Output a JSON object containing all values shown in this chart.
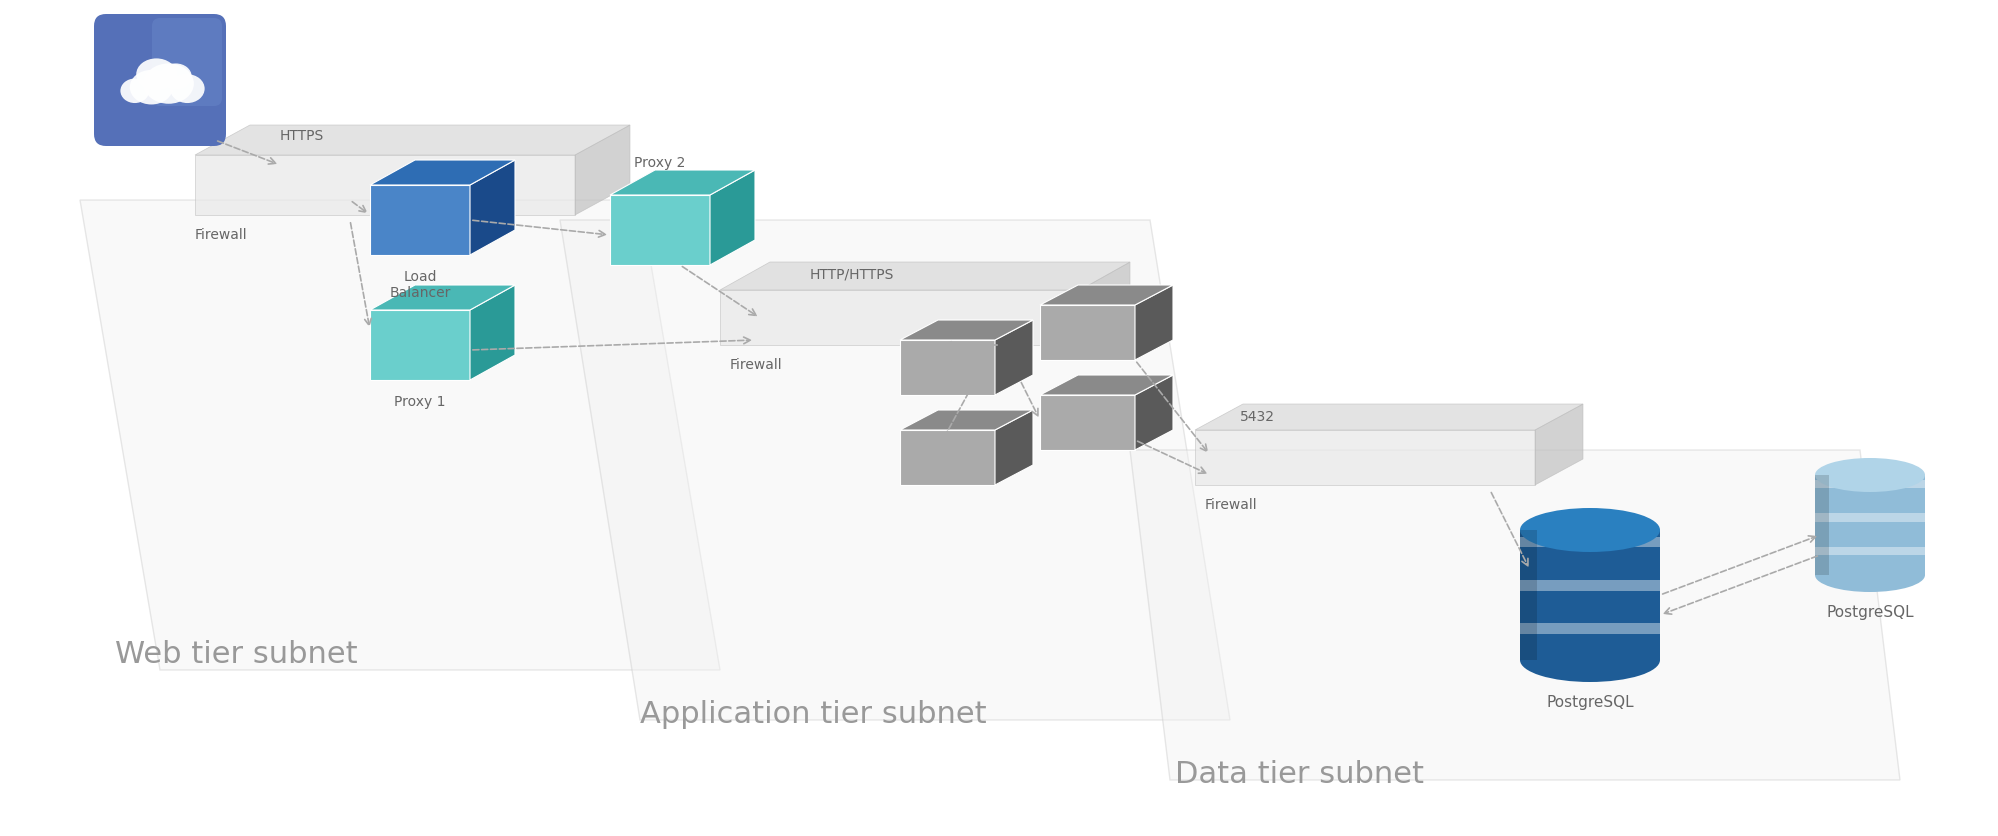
{
  "bg_color": "#ffffff",
  "label_color": "#666666",
  "subnet_label_color": "#999999",
  "load_balancer_top": "#2e6db4",
  "load_balancer_side": "#1a4a8a",
  "load_balancer_front": "#4a85c8",
  "proxy_top": "#4ab8b5",
  "proxy_side": "#2a9a97",
  "proxy_front": "#6acfcc",
  "server_top": "#8a8a8a",
  "server_side": "#5a5a5a",
  "server_front": "#aaaaaa",
  "arrow_color": "#aaaaaa",
  "firewall_front": "#e8e8e8",
  "firewall_top": "#d8d8d8",
  "firewall_side": "#c0c0c0",
  "subnet_fill": "#f2f2f2",
  "subnet_edge": "#cccccc",
  "labels": {
    "firewall1": "Firewall",
    "load_balancer": "Load\nBalancer",
    "proxy1": "Proxy 1",
    "proxy2": "Proxy 2",
    "firewall2": "Firewall",
    "firewall3": "Firewall",
    "postgresql_primary": "PostgreSQL",
    "postgresql_replica": "PostgreSQL",
    "protocol1": "HTTPS",
    "protocol2": "HTTP/HTTPS",
    "protocol3": "5432",
    "web_subnet": "Web tier subnet",
    "app_subnet": "Application tier subnet",
    "data_subnet": "Data tier subnet"
  },
  "cloud_bg": "#5570b8",
  "cloud_highlight": "#7090d0",
  "db_primary_body": "#1e5c96",
  "db_primary_top": "#2a80c0",
  "db_replica_body": "#90bcd8",
  "db_replica_top": "#b0d4e8"
}
